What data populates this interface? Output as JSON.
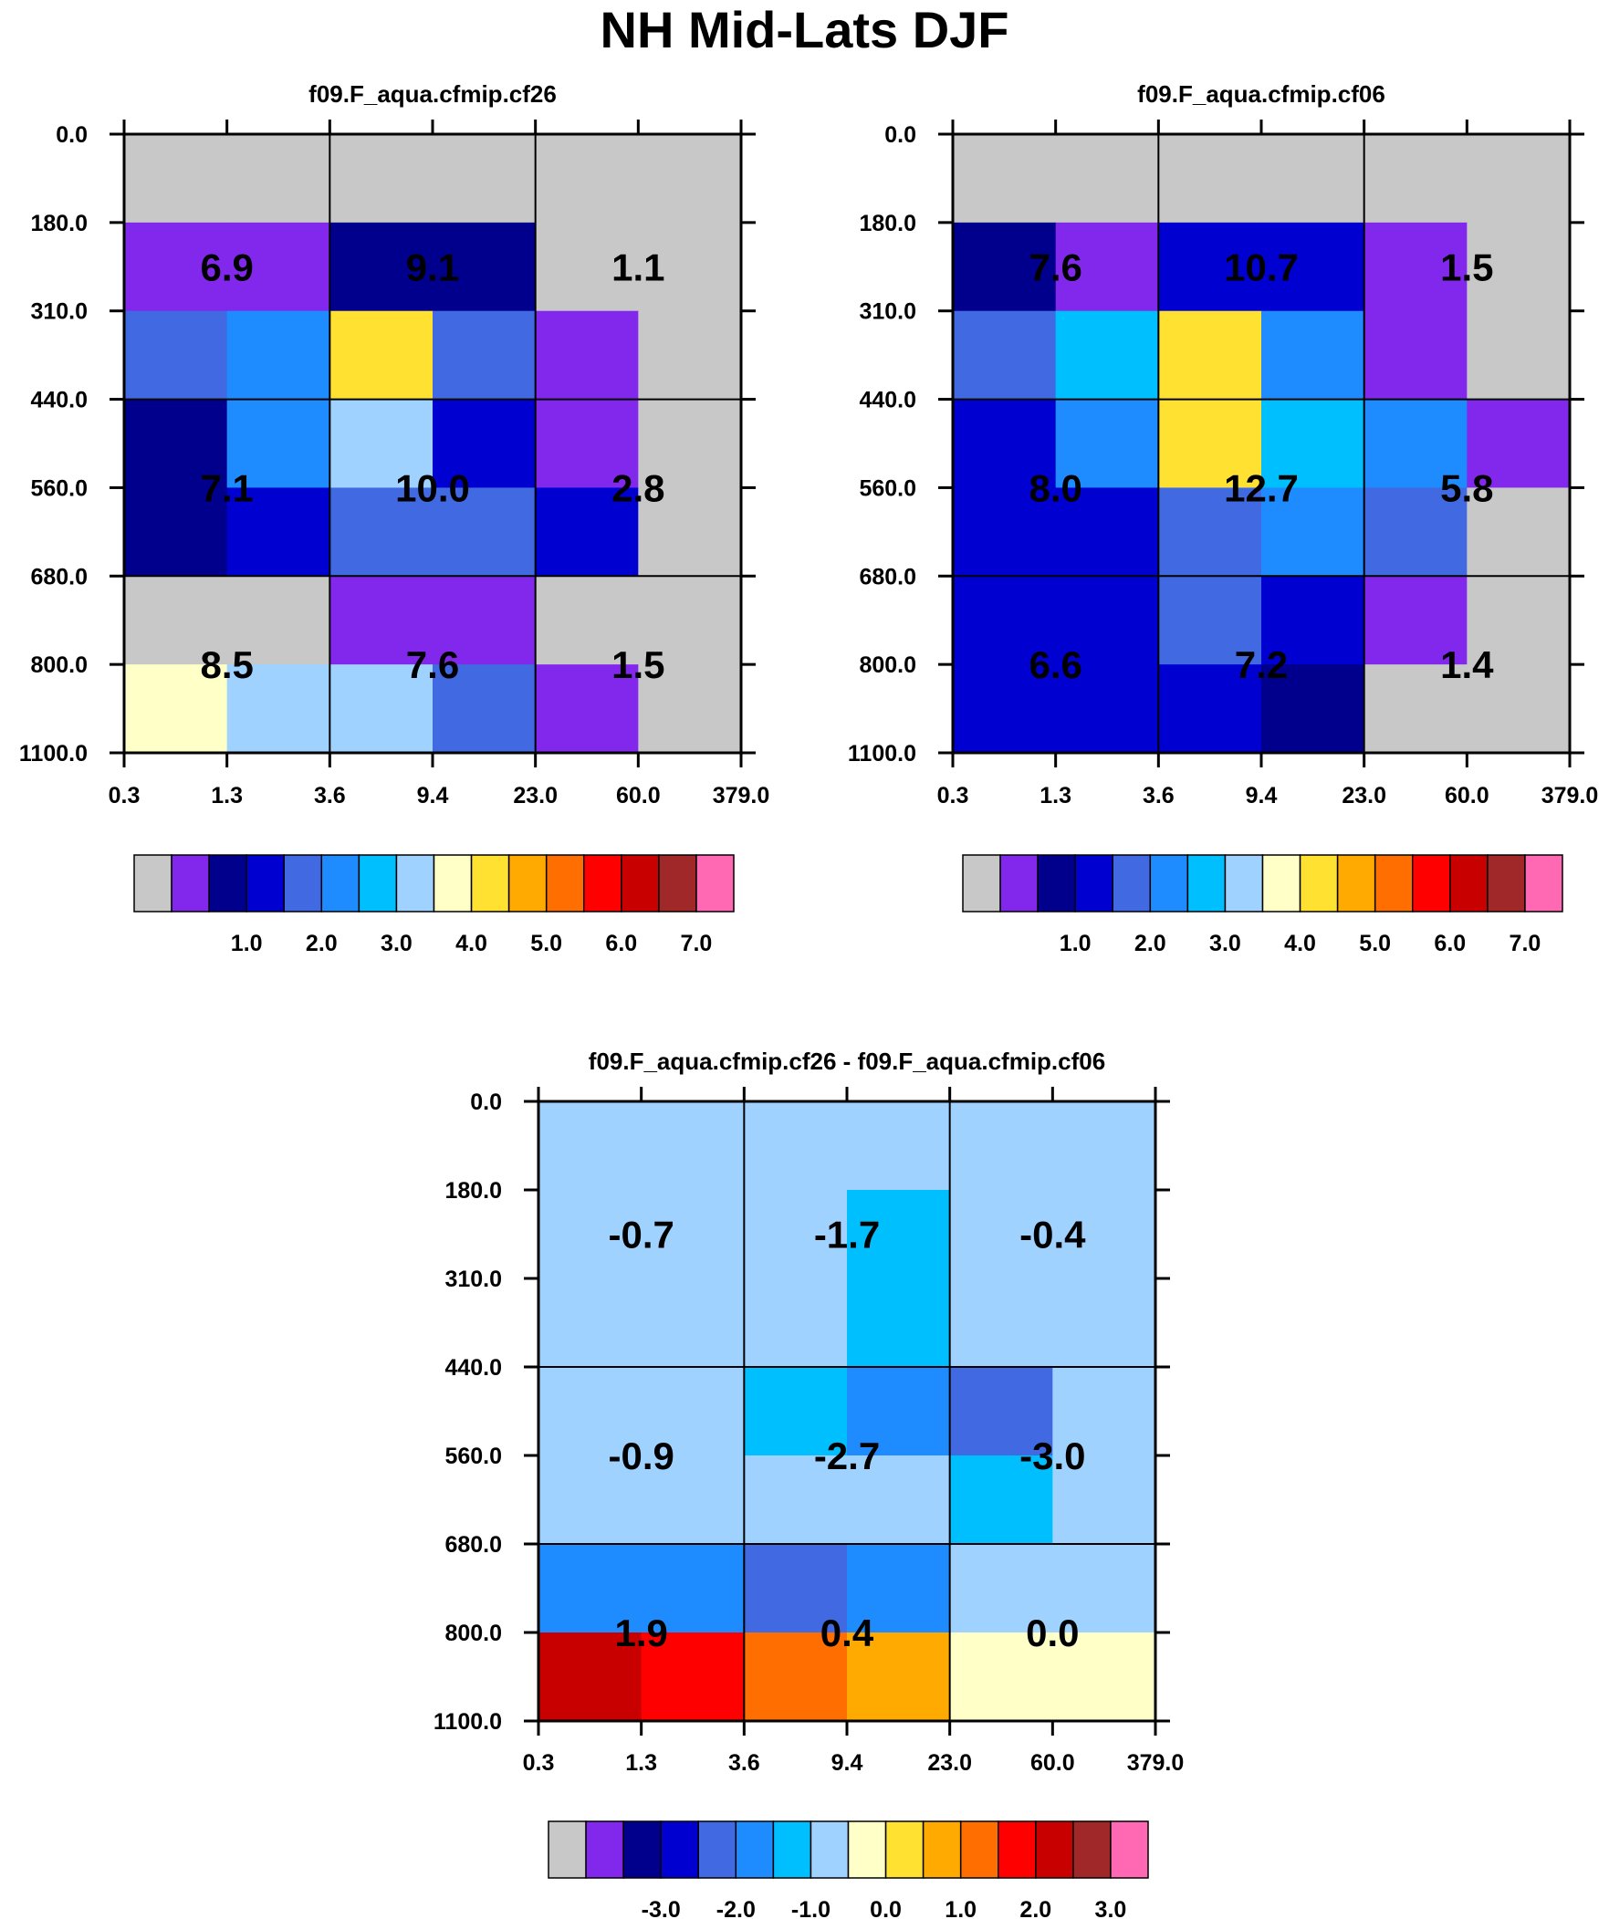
{
  "title": "NH Mid-Lats DJF",
  "chart_data": [
    {
      "type": "heatmap",
      "title": "f09.F_aqua.cfmip.cf26",
      "x_tick_labels": [
        "0.3",
        "1.3",
        "3.6",
        "9.4",
        "23.0",
        "60.0",
        "379.0"
      ],
      "y_tick_labels": [
        "0.0",
        "180.0",
        "310.0",
        "440.0",
        "560.0",
        "680.0",
        "800.0",
        "1100.0"
      ],
      "cells": [
        [
          0,
          0,
          0,
          0,
          0,
          0
        ],
        [
          1,
          1,
          2,
          2,
          0,
          0
        ],
        [
          4,
          5,
          9,
          4,
          1,
          0
        ],
        [
          2,
          5,
          7,
          3,
          1,
          0
        ],
        [
          2,
          3,
          4,
          4,
          3,
          0
        ],
        [
          0,
          0,
          1,
          1,
          0,
          0
        ],
        [
          8,
          7,
          7,
          4,
          1,
          0
        ]
      ],
      "group_labels": [
        [
          "6.9",
          "9.1",
          "1.1"
        ],
        [
          "7.1",
          "10.0",
          "2.8"
        ],
        [
          "8.5",
          "7.6",
          "1.5"
        ]
      ],
      "legend": {
        "colors": [
          "#c8c8c8",
          "#8228ec",
          "#00008c",
          "#0000d0",
          "#4169e1",
          "#1e8cff",
          "#00bfff",
          "#a0d2ff",
          "#ffffc8",
          "#ffe132",
          "#ffaa00",
          "#ff6e00",
          "#ff0000",
          "#c80000",
          "#a02828",
          "#ff69b4"
        ],
        "labels": [
          "1.0",
          "2.0",
          "3.0",
          "4.0",
          "5.0",
          "6.0",
          "7.0"
        ]
      }
    },
    {
      "type": "heatmap",
      "title": "f09.F_aqua.cfmip.cf06",
      "x_tick_labels": [
        "0.3",
        "1.3",
        "3.6",
        "9.4",
        "23.0",
        "60.0",
        "379.0"
      ],
      "y_tick_labels": [
        "0.0",
        "180.0",
        "310.0",
        "440.0",
        "560.0",
        "680.0",
        "800.0",
        "1100.0"
      ],
      "cells": [
        [
          0,
          0,
          0,
          0,
          0,
          0
        ],
        [
          2,
          1,
          3,
          3,
          1,
          0
        ],
        [
          4,
          6,
          9,
          5,
          1,
          0
        ],
        [
          3,
          5,
          9,
          6,
          5,
          1
        ],
        [
          3,
          3,
          4,
          5,
          4,
          0
        ],
        [
          3,
          3,
          4,
          3,
          1,
          0
        ],
        [
          3,
          3,
          3,
          2,
          0,
          0
        ]
      ],
      "group_labels": [
        [
          "7.6",
          "10.7",
          "1.5"
        ],
        [
          "8.0",
          "12.7",
          "5.8"
        ],
        [
          "6.6",
          "7.2",
          "1.4"
        ]
      ],
      "legend": {
        "colors": [
          "#c8c8c8",
          "#8228ec",
          "#00008c",
          "#0000d0",
          "#4169e1",
          "#1e8cff",
          "#00bfff",
          "#a0d2ff",
          "#ffffc8",
          "#ffe132",
          "#ffaa00",
          "#ff6e00",
          "#ff0000",
          "#c80000",
          "#a02828",
          "#ff69b4"
        ],
        "labels": [
          "1.0",
          "2.0",
          "3.0",
          "4.0",
          "5.0",
          "6.0",
          "7.0"
        ]
      }
    },
    {
      "type": "heatmap",
      "title": "f09.F_aqua.cfmip.cf26 - f09.F_aqua.cfmip.cf06",
      "x_tick_labels": [
        "0.3",
        "1.3",
        "3.6",
        "9.4",
        "23.0",
        "60.0",
        "379.0"
      ],
      "y_tick_labels": [
        "0.0",
        "180.0",
        "310.0",
        "440.0",
        "560.0",
        "680.0",
        "800.0",
        "1100.0"
      ],
      "cells": [
        [
          7,
          7,
          7,
          7,
          7,
          7
        ],
        [
          7,
          7,
          7,
          6,
          7,
          7
        ],
        [
          7,
          7,
          7,
          6,
          7,
          7
        ],
        [
          7,
          7,
          6,
          5,
          4,
          7
        ],
        [
          7,
          7,
          7,
          7,
          6,
          7
        ],
        [
          5,
          5,
          4,
          5,
          7,
          7
        ],
        [
          13,
          12,
          11,
          10,
          8,
          8
        ]
      ],
      "group_labels": [
        [
          "-0.7",
          "-1.7",
          "-0.4"
        ],
        [
          "-0.9",
          "-2.7",
          "-3.0"
        ],
        [
          "1.9",
          "0.4",
          "0.0"
        ]
      ],
      "legend": {
        "colors": [
          "#c8c8c8",
          "#8228ec",
          "#00008c",
          "#0000d0",
          "#4169e1",
          "#1e8cff",
          "#00bfff",
          "#a0d2ff",
          "#ffffc8",
          "#ffe132",
          "#ffaa00",
          "#ff6e00",
          "#ff0000",
          "#c80000",
          "#a02828",
          "#ff69b4"
        ],
        "labels": [
          "-3.0",
          "-2.0",
          "-1.0",
          "0.0",
          "1.0",
          "2.0",
          "3.0"
        ]
      }
    }
  ]
}
